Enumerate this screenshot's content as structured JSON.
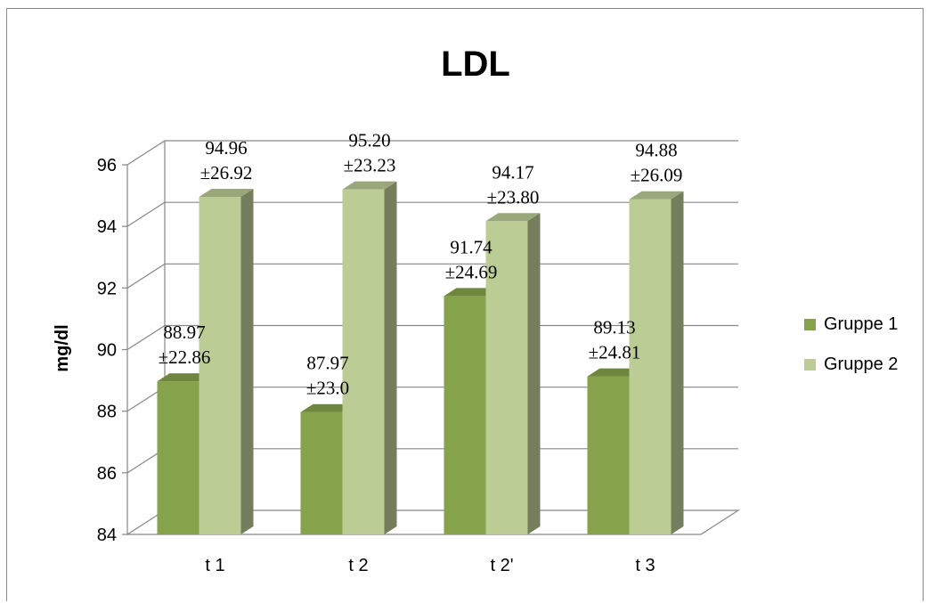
{
  "chart_data": {
    "type": "bar",
    "title": "LDL",
    "ylabel": "mg/dl",
    "xlabel": "",
    "categories": [
      "t 1",
      "t 2",
      "t 2'",
      "t 3"
    ],
    "ylim": [
      84,
      96
    ],
    "yticks": [
      "84",
      "86",
      "88",
      "90",
      "92",
      "94",
      "96"
    ],
    "series": [
      {
        "name": "Gruppe 1",
        "values": [
          88.97,
          87.97,
          91.74,
          89.13
        ],
        "labels": [
          "88.97",
          "87.97",
          "91.74",
          "89.13"
        ],
        "errors": [
          "±22.86",
          "±23.0",
          "±24.69",
          "±24.81"
        ],
        "color": "#86a34b"
      },
      {
        "name": "Gruppe 2",
        "values": [
          94.96,
          95.2,
          94.17,
          94.88
        ],
        "labels": [
          "94.96",
          "95.20",
          "94.17",
          "94.88"
        ],
        "errors": [
          "±26.92",
          "±23.23",
          "±23.80",
          "±26.09"
        ],
        "color": "#bccc95"
      }
    ],
    "grid": true,
    "legend": "right",
    "style": "3d-clustered-column"
  }
}
